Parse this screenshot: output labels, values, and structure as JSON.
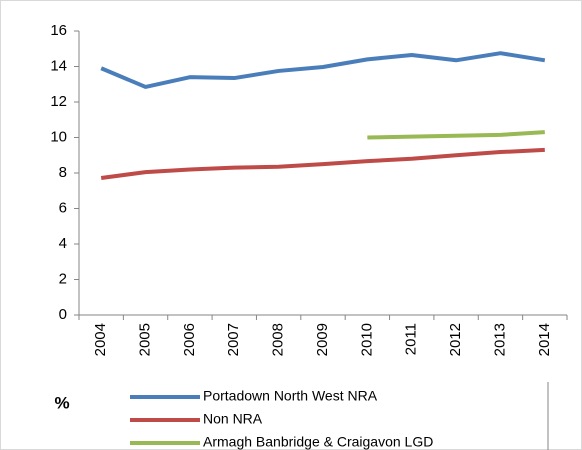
{
  "chart_data": {
    "type": "line",
    "y_label": "%",
    "categories": [
      "2004",
      "2005",
      "2006",
      "2007",
      "2008",
      "2009",
      "2010",
      "2011",
      "2012",
      "2013",
      "2014"
    ],
    "series": [
      {
        "name": "Portadown North West NRA",
        "color": "#4a7ebb",
        "values": [
          13.9,
          12.85,
          13.4,
          13.35,
          13.75,
          13.97,
          14.4,
          14.65,
          14.35,
          14.75,
          14.35
        ]
      },
      {
        "name": "Non NRA",
        "color": "#be4b48",
        "values": [
          7.72,
          8.05,
          8.2,
          8.3,
          8.35,
          8.5,
          8.67,
          8.8,
          9.0,
          9.18,
          9.3
        ]
      },
      {
        "name": "Armagh Banbridge & Craigavon LGD",
        "color": "#98b954",
        "values": [
          null,
          null,
          null,
          null,
          null,
          null,
          10.0,
          10.05,
          10.1,
          10.15,
          10.3
        ]
      }
    ],
    "ylim": [
      0,
      16
    ],
    "yticks": [
      0,
      2,
      4,
      6,
      8,
      10,
      12,
      14,
      16
    ],
    "grid": false
  }
}
